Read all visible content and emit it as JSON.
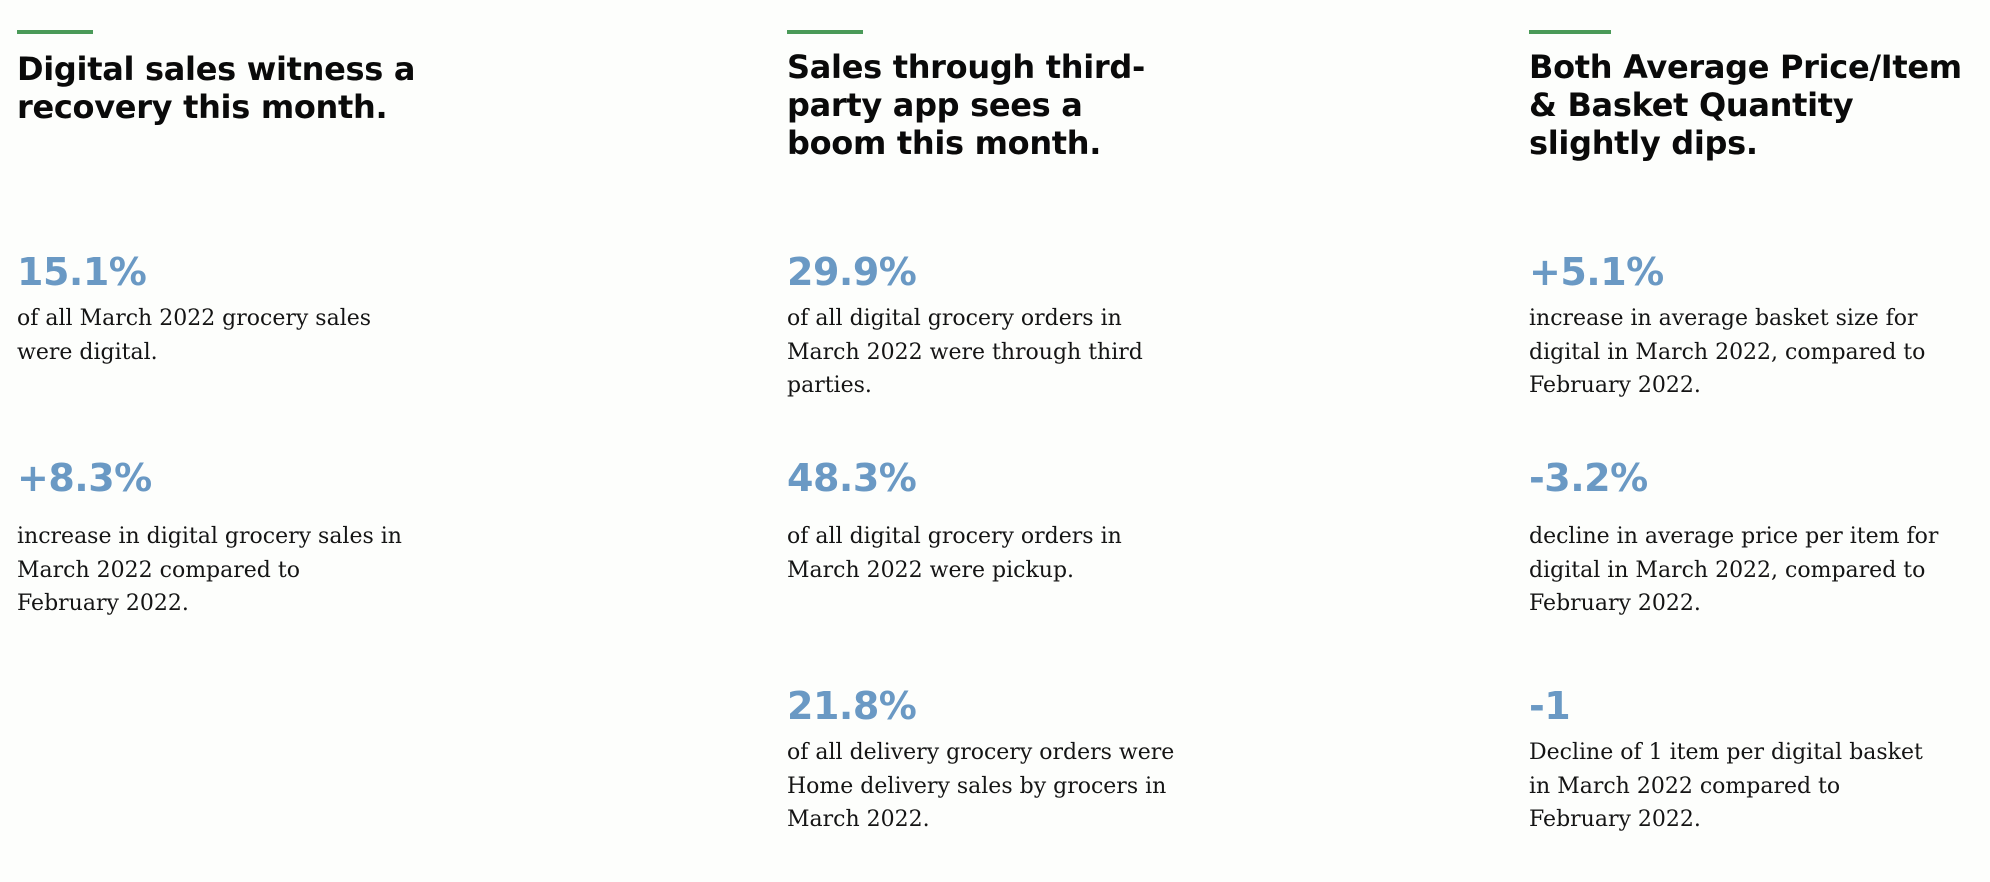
{
  "colors": {
    "accent_bar": "#4a9a58",
    "stat_value": "#6a99c4",
    "headline": "#0a0a0a",
    "body_text": "#141414",
    "background": "#fdfefc"
  },
  "columns": [
    {
      "headline": "Digital sales witness a recovery this month.",
      "stats": [
        {
          "value": "15.1%",
          "description": "of all March 2022 grocery sales were digital."
        },
        {
          "value": "+8.3%",
          "description": "increase in digital grocery sales in March 2022 compared to February 2022."
        }
      ]
    },
    {
      "headline": "Sales through third-party app sees a boom this month.",
      "stats": [
        {
          "value": "29.9%",
          "description": "of all digital grocery orders in March 2022 were through third parties."
        },
        {
          "value": "48.3%",
          "description": "of all digital grocery orders in March 2022 were pickup."
        },
        {
          "value": "21.8%",
          "description": "of all delivery grocery orders were Home delivery sales by grocers in March 2022."
        }
      ]
    },
    {
      "headline": "Both Average Price/Item & Basket Quantity slightly dips.",
      "stats": [
        {
          "value": "+5.1%",
          "description": "increase in average basket size for digital in March 2022, compared to February 2022."
        },
        {
          "value": "-3.2%",
          "description": "decline in average price per item for digital in March 2022, compared to February 2022."
        },
        {
          "value": "-1",
          "description": "Decline of 1 item per digital basket in March 2022 compared to February 2022."
        }
      ]
    }
  ]
}
